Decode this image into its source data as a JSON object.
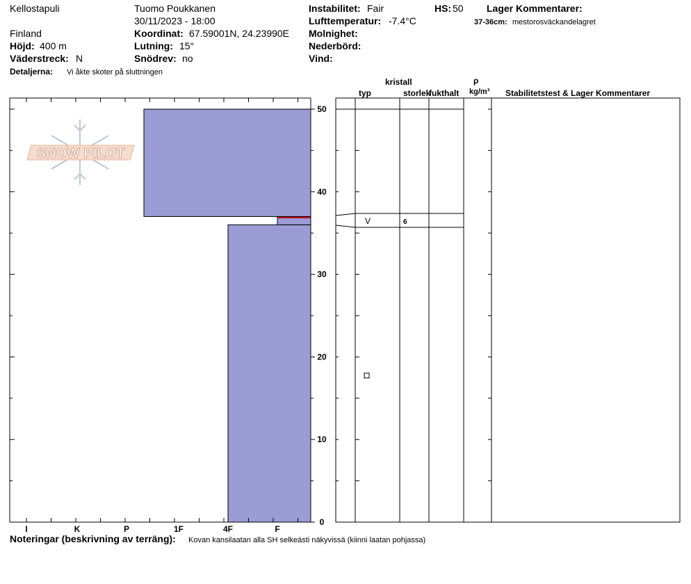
{
  "header": {
    "location": "Kellostapuli",
    "country": "Finland",
    "observer": "Tuomo Poukkanen",
    "datetime": "30/11/2023 - 18:00",
    "elevation_label": "Höjd:",
    "elevation": "400 m",
    "aspect_label": "Väderstreck:",
    "aspect": "N",
    "coords_label": "Koordinat:",
    "coords": "67.59001N, 24.23990E",
    "slope_label": "Lutning:",
    "slope": "15°",
    "wind_loading_label": "Snödrev:",
    "wind_loading": "no",
    "instability_label": "Instabilitet:",
    "instability": "Fair",
    "air_temp_label": "Lufttemperatur:",
    "air_temp": "-7.4°C",
    "sky_label": "Molnighet:",
    "precip_label": "Nederbörd:",
    "wind_label": "Vind:",
    "hs_label": "HS:",
    "hs": "50",
    "layer_comments_label": "Lager Kommentarer:",
    "layer_comment_range": "37-36cm:",
    "layer_comment_text": "mestorosväckandelagret",
    "details_label": "Detaljerna:",
    "details": "Vi åkte skoter på sluttningen"
  },
  "footer": {
    "notes_label": "Noteringar (beskrivning av terräng):",
    "notes": "Kovan kansilaatan alla SH selkeästi näkyvissä (kiinni laatan pohjassa)"
  },
  "logo_text": "SNOW PILOT",
  "columns": {
    "crystal_label": "kristall",
    "type": "typ",
    "size": "storlek",
    "moisture": "fukthalt",
    "rho": "ρ",
    "density": "kg/m³",
    "stability": "Stabilitetstest & Lager Kommentarer"
  },
  "chart_data": {
    "type": "bar",
    "orientation": "horizontal",
    "x_scale": "hand hardness",
    "x_categories": [
      "I",
      "K",
      "P",
      "1F",
      "4F",
      "F"
    ],
    "y_axis": {
      "ylim": [
        0,
        50
      ],
      "ticks": [
        0,
        10,
        20,
        30,
        40,
        50
      ]
    },
    "layers": [
      {
        "bottom": 0,
        "top": 36,
        "hardness": "4F"
      },
      {
        "bottom": 36,
        "top": 37,
        "hardness": "F",
        "crystal_type_symbol": "V",
        "grain_size": "6"
      },
      {
        "bottom": 37,
        "top": 50,
        "hardness": "P-1F"
      }
    ],
    "crystal_symbols": [
      {
        "height": 36.5,
        "symbol": "V"
      },
      {
        "height": 17.7,
        "symbol": "□"
      }
    ],
    "colors": {
      "layer_fill": "#9b9bd6",
      "weak_layer": "#c00000"
    }
  }
}
